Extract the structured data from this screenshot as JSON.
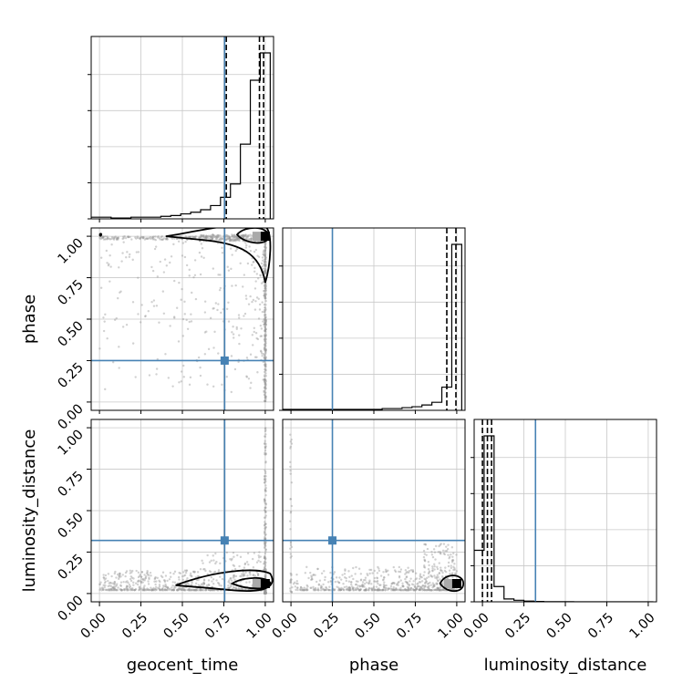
{
  "chart_data": {
    "type": "corner",
    "parameters": [
      "geocent_time",
      "phase",
      "luminosity_distance"
    ],
    "tick_labels": [
      "0.00",
      "0.25",
      "0.50",
      "0.75",
      "1.00"
    ],
    "tick_values": [
      0,
      0.25,
      0.5,
      0.75,
      1.0
    ],
    "axis_range": [
      -0.05,
      1.05
    ],
    "grid": true,
    "colors": {
      "truth": "#4682b4",
      "line": "#000000",
      "scatter": "#9a9a9a"
    },
    "truths": {
      "geocent_time": 0.755,
      "phase": 0.25,
      "luminosity_distance": 0.32
    },
    "diagonal": [
      {
        "param": "geocent_time",
        "bin_edges": [
          -0.05,
          0.01,
          0.07,
          0.13,
          0.19,
          0.25,
          0.31,
          0.37,
          0.43,
          0.49,
          0.55,
          0.61,
          0.67,
          0.73,
          0.79,
          0.85,
          0.91,
          0.97,
          1.03
        ],
        "counts": [
          0.01,
          0.01,
          0.005,
          0.005,
          0.01,
          0.01,
          0.01,
          0.015,
          0.02,
          0.03,
          0.04,
          0.055,
          0.08,
          0.13,
          0.21,
          0.45,
          0.835,
          1.0
        ],
        "quantiles": [
          0.765,
          0.965,
          0.99
        ]
      },
      {
        "param": "phase",
        "bin_edges": [
          -0.05,
          0.01,
          0.07,
          0.13,
          0.19,
          0.25,
          0.31,
          0.37,
          0.43,
          0.49,
          0.55,
          0.61,
          0.67,
          0.73,
          0.79,
          0.85,
          0.91,
          0.97,
          1.03
        ],
        "counts": [
          0.005,
          0.005,
          0.005,
          0.005,
          0.005,
          0.005,
          0.005,
          0.005,
          0.005,
          0.005,
          0.01,
          0.01,
          0.015,
          0.02,
          0.03,
          0.045,
          0.13,
          0.93
        ],
        "quantiles": [
          0.94,
          0.995
        ]
      },
      {
        "param": "luminosity_distance",
        "bin_edges": [
          -0.05,
          0.01,
          0.07,
          0.13,
          0.19,
          0.25,
          0.31,
          0.37,
          0.43,
          0.49,
          0.55,
          0.61,
          0.67,
          0.73,
          0.79,
          0.85,
          0.91,
          0.97,
          1.03
        ],
        "counts": [
          0.27,
          0.87,
          0.08,
          0.015,
          0.008,
          0.004,
          0.002,
          0.001,
          0.001,
          0.001,
          0,
          0,
          0,
          0,
          0,
          0,
          0,
          0
        ],
        "quantiles": [
          0.0,
          0.03,
          0.055
        ]
      }
    ],
    "pairs": [
      {
        "x": "geocent_time",
        "y": "phase",
        "mode": [
          1.0,
          1.0
        ]
      },
      {
        "x": "geocent_time",
        "y": "luminosity_distance",
        "mode": [
          1.0,
          0.06
        ]
      },
      {
        "x": "phase",
        "y": "luminosity_distance",
        "mode": [
          1.0,
          0.06
        ]
      }
    ]
  }
}
